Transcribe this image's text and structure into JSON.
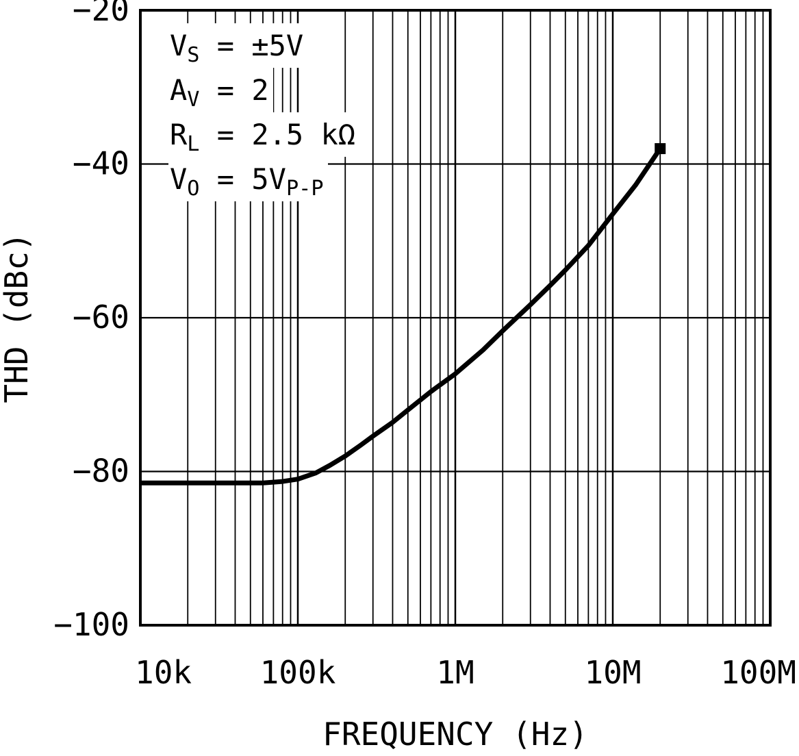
{
  "chart_data": {
    "type": "line",
    "title": "",
    "xlabel": "FREQUENCY (Hz)",
    "ylabel": "THD (dBc)",
    "x_scale": "log",
    "y_scale": "linear",
    "xlim": [
      10000,
      100000000
    ],
    "ylim": [
      -100,
      -20
    ],
    "grid": true,
    "legend": "none",
    "line_color": "#000000",
    "end_marker": "square",
    "xticks": [
      {
        "v": 10000,
        "label": "10k"
      },
      {
        "v": 100000,
        "label": "100k"
      },
      {
        "v": 1000000,
        "label": "1M"
      },
      {
        "v": 10000000,
        "label": "10M"
      },
      {
        "v": 100000000,
        "label": "100M"
      }
    ],
    "yticks": [
      {
        "v": -20,
        "label": "−20"
      },
      {
        "v": -40,
        "label": "−40"
      },
      {
        "v": -60,
        "label": "−60"
      },
      {
        "v": -80,
        "label": "−80"
      },
      {
        "v": -100,
        "label": "−100"
      }
    ],
    "series": [
      {
        "name": "THD vs Frequency",
        "points": [
          [
            10000,
            -81.5
          ],
          [
            15000,
            -81.5
          ],
          [
            20000,
            -81.5
          ],
          [
            30000,
            -81.5
          ],
          [
            40000,
            -81.5
          ],
          [
            50000,
            -81.5
          ],
          [
            60000,
            -81.5
          ],
          [
            80000,
            -81.3
          ],
          [
            100000,
            -81.0
          ],
          [
            130000,
            -80.2
          ],
          [
            160000,
            -79.2
          ],
          [
            200000,
            -78.0
          ],
          [
            250000,
            -76.6
          ],
          [
            300000,
            -75.4
          ],
          [
            400000,
            -73.6
          ],
          [
            500000,
            -72.0
          ],
          [
            700000,
            -69.6
          ],
          [
            1000000,
            -67.3
          ],
          [
            1500000,
            -64.2
          ],
          [
            2000000,
            -61.7
          ],
          [
            3000000,
            -58.3
          ],
          [
            4000000,
            -55.8
          ],
          [
            5000000,
            -53.8
          ],
          [
            7000000,
            -50.6
          ],
          [
            10000000,
            -46.5
          ],
          [
            14000000,
            -42.7
          ],
          [
            20000000,
            -38.0
          ]
        ]
      }
    ],
    "annotations": [
      {
        "segments": [
          {
            "text": "V"
          },
          {
            "text": "S",
            "sub": true
          },
          {
            "text": " = ±5V"
          }
        ]
      },
      {
        "segments": [
          {
            "text": "A"
          },
          {
            "text": "V",
            "sub": true
          },
          {
            "text": " = 2"
          }
        ]
      },
      {
        "segments": [
          {
            "text": "R"
          },
          {
            "text": "L",
            "sub": true
          },
          {
            "text": " = 2.5 kΩ"
          }
        ]
      },
      {
        "segments": [
          {
            "text": "V"
          },
          {
            "text": "O",
            "sub": true
          },
          {
            "text": " = 5V"
          },
          {
            "text": "P-P",
            "sub": true
          }
        ]
      }
    ]
  }
}
